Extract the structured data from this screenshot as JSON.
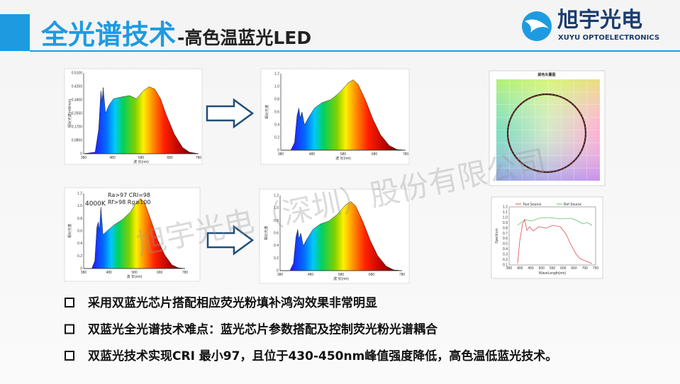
{
  "header": {
    "title_main": "全光谱技术",
    "title_sub": "-高色温蓝光LED"
  },
  "logo": {
    "name": "旭宇光电",
    "subtitle": "XUYU OPTOELECTRONICS"
  },
  "watermark": "旭宇光电（深圳）股份有限公司",
  "panels": {
    "spectrum_1": {
      "yticks": [
        "0.5100",
        "0.4250",
        "0.3400",
        "0.2550",
        "0.1700",
        "0.0850",
        "0"
      ],
      "xticks": [
        "380",
        "480",
        "580",
        "680",
        "780"
      ],
      "xlabel": "波 长(nm)",
      "ylabel": "相对光谱(mW/nm)"
    },
    "spectrum_2": {
      "yticks": [
        "1.2",
        "1.0",
        "0.8",
        "0.6",
        "0.4",
        "0.2",
        "0"
      ],
      "xticks": [
        "380",
        "480",
        "580",
        "680",
        "780"
      ],
      "xlabel": "波 长(nm)",
      "ylabel": "相对光谱"
    },
    "vector": {
      "title": "颜色矢量图"
    },
    "spectrum_3": {
      "yticks": [
        "1.2",
        "1.0",
        "0.8",
        "0.6",
        "0.4",
        "0.2",
        "0"
      ],
      "xticks": [
        "380",
        "480",
        "580",
        "680",
        "780"
      ],
      "xlabel": "波 长(nm)",
      "ylabel": "相对光谱",
      "notes": [
        "Ra>97  CRI=98",
        "Rf>98  Rg≥100",
        "4000K"
      ]
    },
    "spectrum_4": {
      "yticks": [
        "1.2",
        "1.0",
        "0.8",
        "0.6",
        "0.4",
        "0.2",
        "0"
      ],
      "xticks": [
        "380",
        "480",
        "580",
        "680",
        "780"
      ],
      "xlabel": "波 长(nm)",
      "ylabel": "相对光谱"
    },
    "compare": {
      "legend": [
        "Test Source",
        "Ref Source"
      ],
      "ylabel": "Spectrum",
      "xlabel": "WaveLength(nm)",
      "yticks": [
        "1.2",
        "1.1",
        "1.0",
        "0.9",
        "0.8",
        "0.7",
        "0.6",
        "0.5",
        "0.4",
        "0.3",
        "0.2",
        "0.1"
      ],
      "xticks": [
        "350",
        "400",
        "450",
        "500",
        "550",
        "600",
        "650",
        "700",
        "750"
      ]
    }
  },
  "bullets": [
    "采用双蓝光芯片搭配相应荧光粉填补鸿沟效果非常明显",
    "双蓝光全光谱技术难点：蓝光芯片参数搭配及控制荧光粉光谱耦合",
    "双蓝光技术实现CRI 最小97，且位于430-450nm峰值强度降低，高色温低蓝光技术。"
  ]
}
